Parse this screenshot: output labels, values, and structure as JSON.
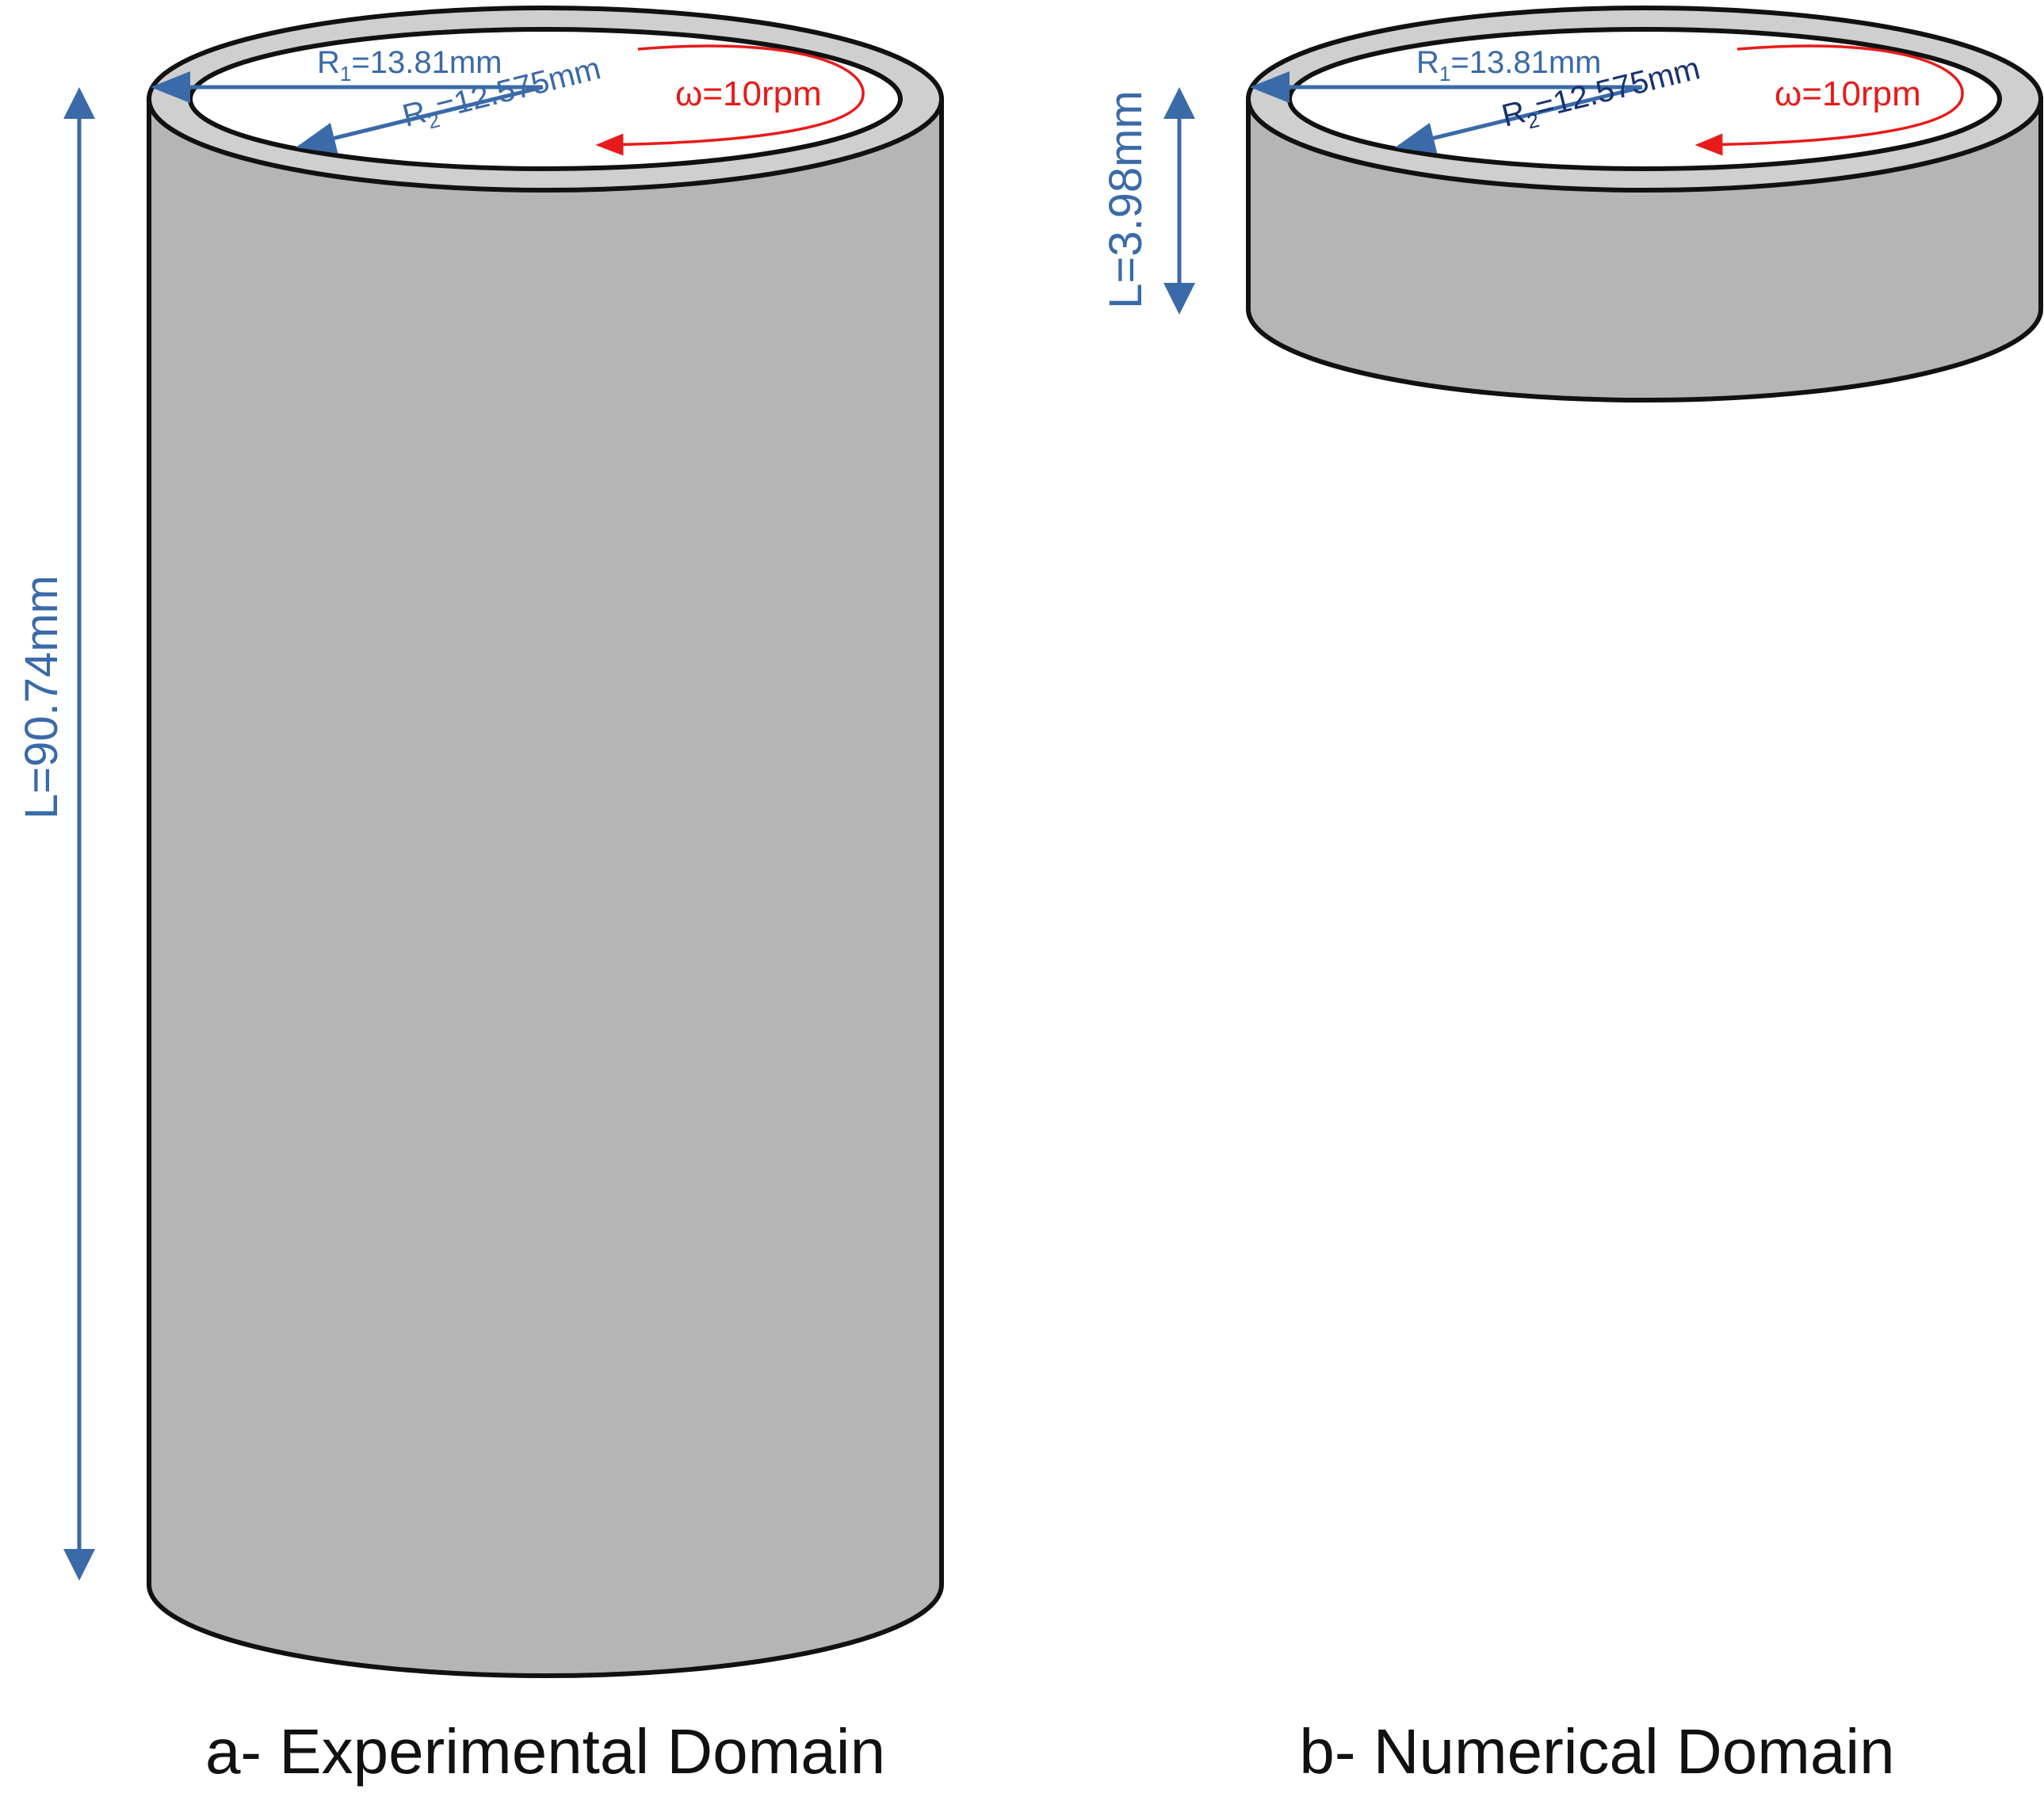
{
  "panels": [
    {
      "id": "a",
      "caption": "a- Experimental Domain",
      "r1_prefix": "R",
      "r1_sub": "1",
      "r1_value": "=13.81mm",
      "r2_prefix": "R",
      "r2_sub": "2",
      "r2_value": "=12.575mm",
      "omega_label": "ω=10rpm",
      "length_label": "L=90.74mm"
    },
    {
      "id": "b",
      "caption": "b- Numerical Domain",
      "r1_prefix": "R",
      "r1_sub": "1",
      "r1_value": "=13.81mm",
      "r2_prefix": "R",
      "r2_sub": "2",
      "r2_value": "=12.575mm",
      "omega_label": "ω=10rpm",
      "length_label": "L=3.98mm"
    }
  ],
  "colors": {
    "cylinder_fill": "#b5b5b5",
    "annulus_fill": "#cfcfcf",
    "outline": "#111111",
    "dimension_blue": "#3a6aa8",
    "dimension_navy": "#17336e",
    "rotation_red": "#e81a1a"
  }
}
